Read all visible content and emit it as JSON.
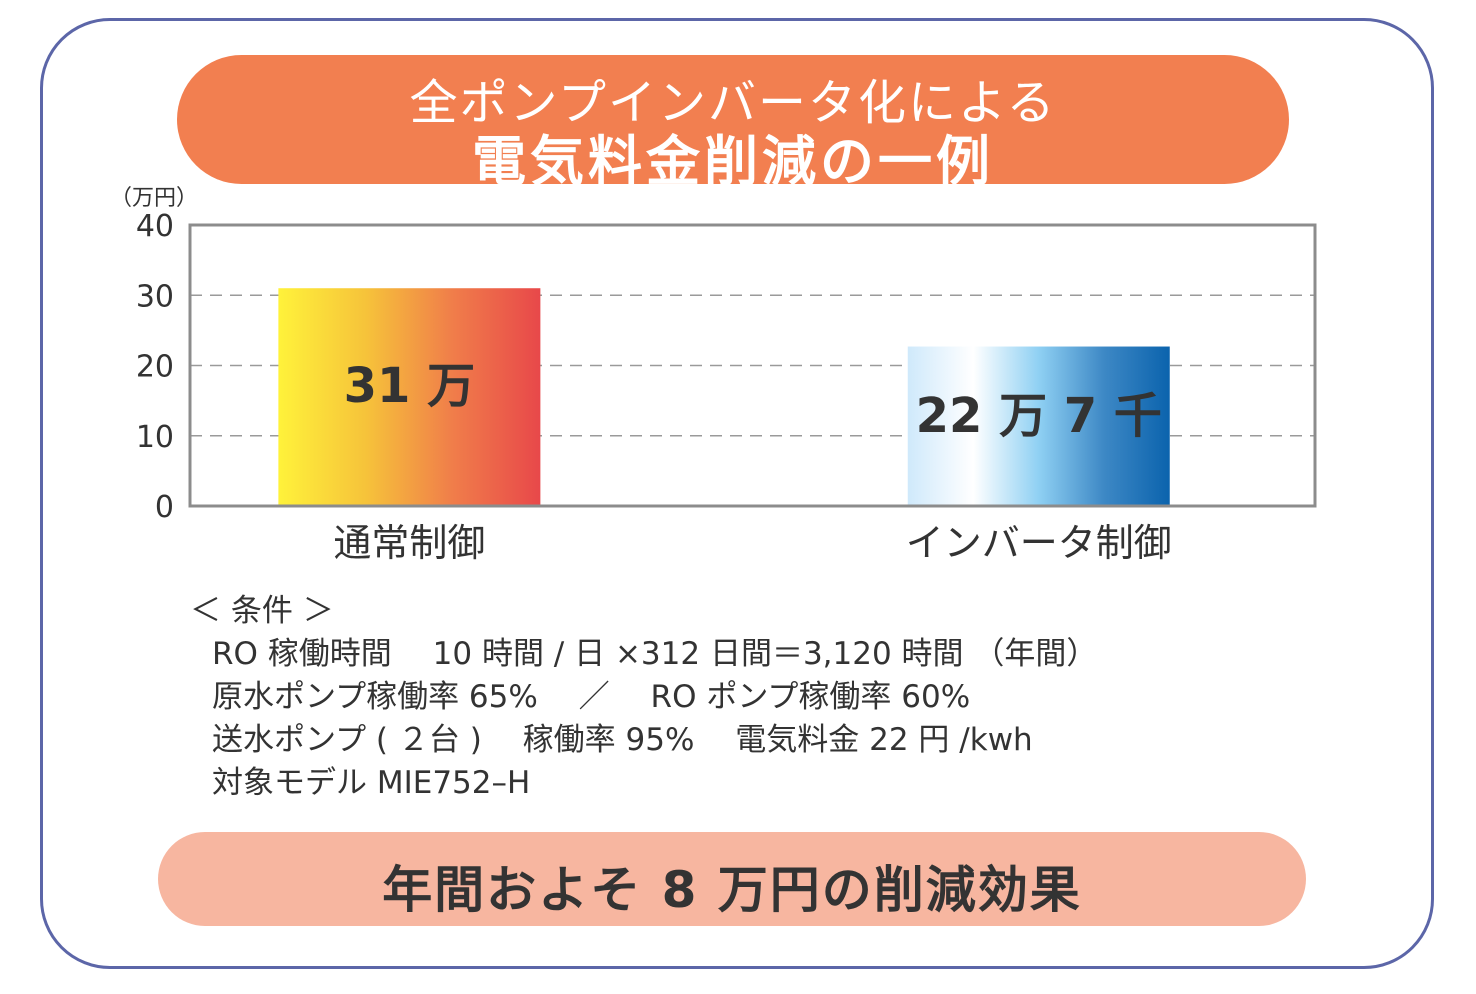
{
  "header": {
    "title_line1": "全ポンプインバータ化による",
    "title_line2": "電気料金削減の一例"
  },
  "chart_data": {
    "type": "bar",
    "unit_label": "（万円）",
    "categories": [
      "通常制御",
      "インバータ制御"
    ],
    "values": [
      31,
      22.7
    ],
    "data_labels": [
      "31 万",
      "22 万 7 千"
    ],
    "yticks": [
      "0",
      "10",
      "20",
      "30",
      "40"
    ],
    "ylim": [
      0,
      40
    ],
    "grid": true,
    "bar_gradients": [
      [
        "#fff23a",
        "#f6c33a",
        "#f07d4a",
        "#e8484a"
      ],
      [
        "#cfe9fb",
        "#ffffff",
        "#8fd0f3",
        "#3d88c5",
        "#0b63ad"
      ]
    ]
  },
  "conditions": {
    "heading": "＜ 条件 ＞",
    "lines": [
      "RO 稼働時間　 10 時間 / 日 ×312 日間＝3,120 時間 （年間）",
      "原水ポンプ稼働率 65%　 ／　 RO ポンプ稼働率 60%",
      "送水ポンプ ( ２台 )　 稼働率 95%　 電気料金 22 円 /kwh",
      "対象モデル MIE752–H"
    ]
  },
  "result": {
    "text": "年間およそ 8 万円の削減効果"
  },
  "colors": {
    "frame": "#5c66a8",
    "title_banner": "#f27f50",
    "result_banner": "#f7b6a0"
  }
}
